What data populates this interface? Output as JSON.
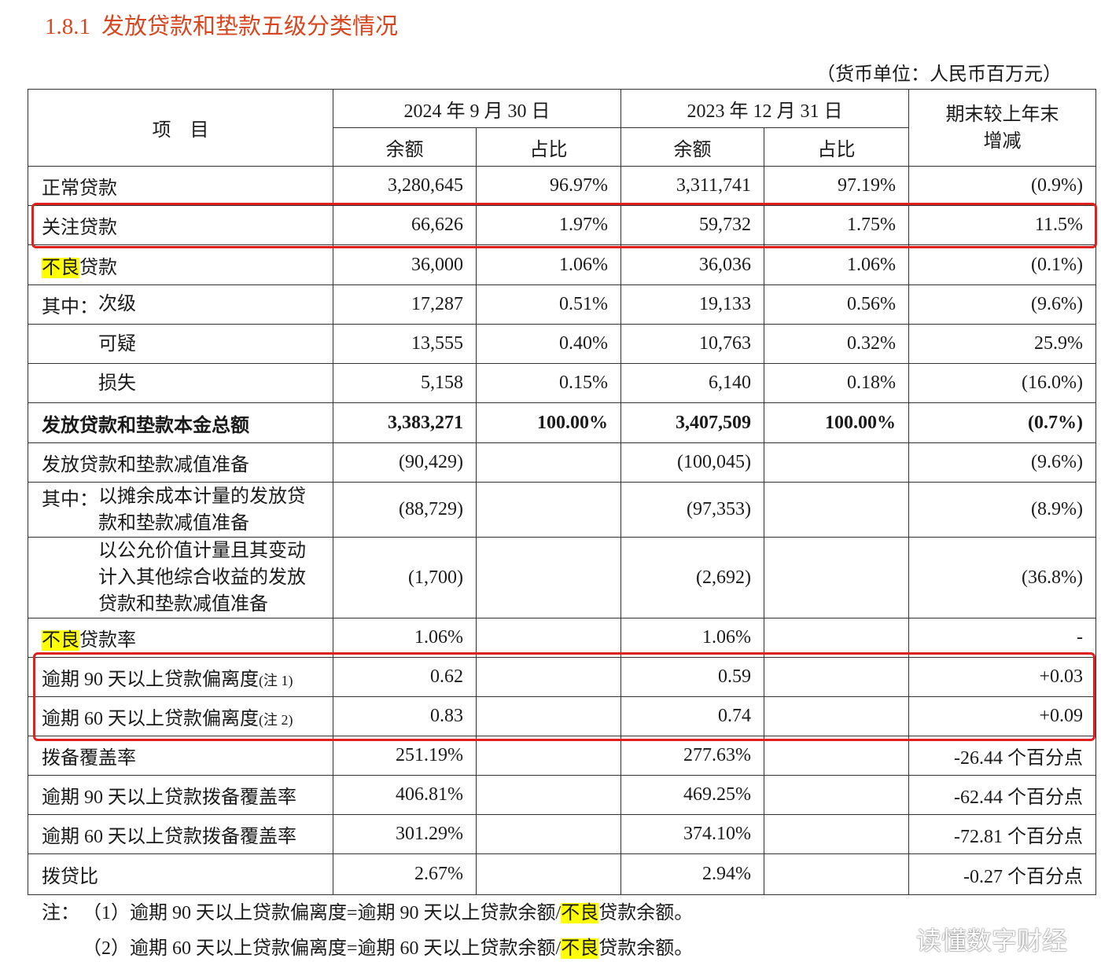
{
  "title": {
    "number": "1.8.1",
    "text": "发放贷款和垫款五级分类情况"
  },
  "unit": "（货币单位：人民币百万元）",
  "table": {
    "header": {
      "item": "项　目",
      "periods": [
        "2024 年 9 月 30 日",
        "2023 年 12 月 31 日"
      ],
      "sub": [
        "余额",
        "占比",
        "余额",
        "占比"
      ],
      "change": "期末较上年末增减"
    },
    "rows": [
      {
        "label": "正常贷款",
        "cells": [
          "3,280,645",
          "96.97%",
          "3,311,741",
          "97.19%",
          "(0.9%)"
        ]
      },
      {
        "label": "关注贷款",
        "cells": [
          "66,626",
          "1.97%",
          "59,732",
          "1.75%",
          "11.5%"
        ]
      },
      {
        "label": [
          {
            "text": "不良",
            "highlight": true
          },
          {
            "text": "贷款"
          }
        ],
        "cells": [
          "36,000",
          "1.06%",
          "36,036",
          "1.06%",
          "(0.1%)"
        ]
      },
      {
        "prefix": "其中：",
        "label": "次级",
        "cells": [
          "17,287",
          "0.51%",
          "19,133",
          "0.56%",
          "(9.6%)"
        ]
      },
      {
        "sub_item": true,
        "label": "可疑",
        "cells": [
          "13,555",
          "0.40%",
          "10,763",
          "0.32%",
          "25.9%"
        ]
      },
      {
        "sub_item": true,
        "label": "损失",
        "cells": [
          "5,158",
          "0.15%",
          "6,140",
          "0.18%",
          "(16.0%)"
        ]
      },
      {
        "bold": true,
        "label": "发放贷款和垫款本金总额",
        "cells": [
          "3,383,271",
          "100.00%",
          "3,407,509",
          "100.00%",
          "(0.7%)"
        ]
      },
      {
        "label": "发放贷款和垫款减值准备",
        "cells": [
          "(90,429)",
          null,
          "(100,045)",
          null,
          "(9.6%)"
        ]
      },
      {
        "prefix": "其中：",
        "label": "以摊余成本计量的发放贷款和垫款减值准备",
        "cells": [
          "(88,729)",
          null,
          "(97,353)",
          null,
          "(8.9%)"
        ]
      },
      {
        "sub_item": true,
        "label": "以公允价值计量且其变动计入其他综合收益的发放贷款和垫款减值准备",
        "cells": [
          "(1,700)",
          null,
          "(2,692)",
          null,
          "(36.8%)"
        ]
      },
      {
        "label": [
          {
            "text": "不良",
            "highlight": true
          },
          {
            "text": "贷款率"
          }
        ],
        "cells": [
          "1.06%",
          null,
          "1.06%",
          null,
          "-"
        ]
      },
      {
        "label": [
          {
            "text": "逾期 90 天以上贷款偏离度"
          },
          {
            "text": "(注 1)",
            "small": true
          }
        ],
        "cells": [
          "0.62",
          null,
          "0.59",
          null,
          "+0.03"
        ]
      },
      {
        "label": [
          {
            "text": "逾期 60 天以上贷款偏离度"
          },
          {
            "text": "(注 2)",
            "small": true
          }
        ],
        "cells": [
          "0.83",
          null,
          "0.74",
          null,
          "+0.09"
        ]
      },
      {
        "label": "拨备覆盖率",
        "cells": [
          "251.19%",
          null,
          "277.63%",
          null,
          "-26.44 个百分点"
        ]
      },
      {
        "label": "逾期 90 天以上贷款拨备覆盖率",
        "cells": [
          "406.81%",
          null,
          "469.25%",
          null,
          "-62.44 个百分点"
        ]
      },
      {
        "label": "逾期 60 天以上贷款拨备覆盖率",
        "cells": [
          "301.29%",
          null,
          "374.10%",
          null,
          "-72.81 个百分点"
        ]
      },
      {
        "label": "拨贷比",
        "cells": [
          "2.67%",
          null,
          "2.94%",
          null,
          "-0.27 个百分点"
        ]
      }
    ]
  },
  "notes": [
    {
      "prefix": "注：",
      "segments": [
        {
          "text": "（1）逾期 90 天以上贷款偏离度=逾期 90 天以上贷款余额/"
        },
        {
          "text": "不良",
          "highlight": true
        },
        {
          "text": "贷款余额。"
        }
      ]
    },
    {
      "segments": [
        {
          "text": "（2）逾期 60 天以上贷款偏离度=逾期 60 天以上贷款余额/"
        },
        {
          "text": "不良",
          "highlight": true
        },
        {
          "text": "贷款余额。"
        }
      ]
    }
  ],
  "watermark": "读懂数字财经"
}
